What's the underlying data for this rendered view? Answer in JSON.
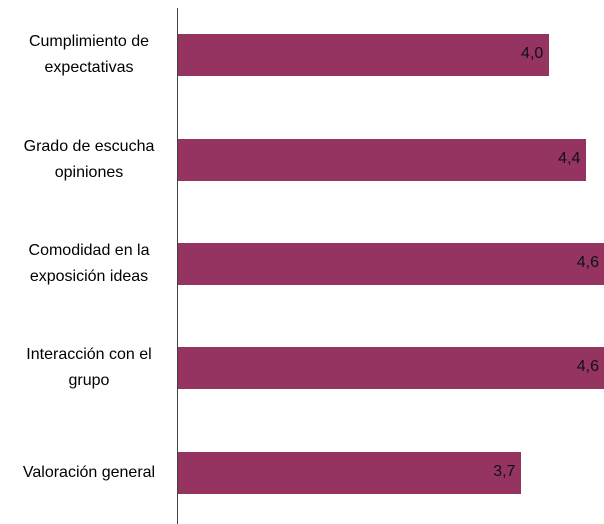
{
  "chart_data": {
    "type": "barh",
    "categories": [
      "Cumplimiento de expectativas",
      "Grado de escucha opiniones",
      "Comodidad en la exposición ideas",
      "Interacción con el grupo",
      "Valoración general"
    ],
    "values": [
      4.0,
      4.4,
      4.6,
      4.6,
      3.7
    ],
    "value_labels": [
      "4,0",
      "4,4",
      "4,6",
      "4,6",
      "3,7"
    ],
    "color": "#953461",
    "xlim": [
      0,
      4.6
    ]
  }
}
